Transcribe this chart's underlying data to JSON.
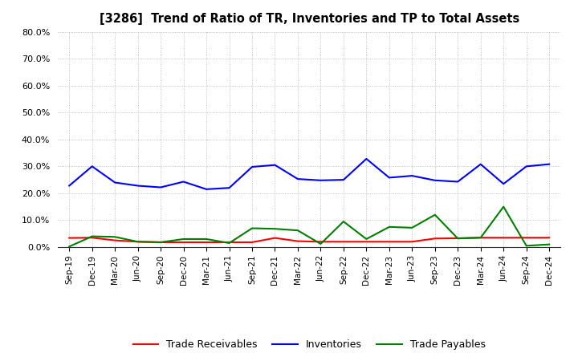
{
  "title": "[3286]  Trend of Ratio of TR, Inventories and TP to Total Assets",
  "x_labels": [
    "Sep-19",
    "Dec-19",
    "Mar-20",
    "Jun-20",
    "Sep-20",
    "Dec-20",
    "Mar-21",
    "Jun-21",
    "Sep-21",
    "Dec-21",
    "Mar-22",
    "Jun-22",
    "Sep-22",
    "Dec-22",
    "Mar-23",
    "Jun-23",
    "Sep-23",
    "Dec-23",
    "Mar-24",
    "Jun-24",
    "Sep-24",
    "Dec-24"
  ],
  "trade_receivables": [
    0.034,
    0.035,
    0.025,
    0.02,
    0.018,
    0.018,
    0.018,
    0.018,
    0.018,
    0.034,
    0.022,
    0.02,
    0.02,
    0.02,
    0.02,
    0.02,
    0.032,
    0.033,
    0.035,
    0.035,
    0.035,
    0.035
  ],
  "inventories": [
    0.228,
    0.3,
    0.24,
    0.228,
    0.222,
    0.243,
    0.215,
    0.22,
    0.298,
    0.305,
    0.253,
    0.248,
    0.25,
    0.328,
    0.258,
    0.265,
    0.248,
    0.243,
    0.308,
    0.235,
    0.3,
    0.308
  ],
  "trade_payables": [
    0.002,
    0.04,
    0.038,
    0.02,
    0.018,
    0.03,
    0.03,
    0.015,
    0.07,
    0.068,
    0.062,
    0.012,
    0.095,
    0.03,
    0.075,
    0.072,
    0.12,
    0.032,
    0.035,
    0.15,
    0.005,
    0.01
  ],
  "tr_color": "#ff0000",
  "inv_color": "#0000ff",
  "tp_color": "#008000",
  "ylim": [
    0.0,
    0.8
  ],
  "yticks": [
    0.0,
    0.1,
    0.2,
    0.3,
    0.4,
    0.5,
    0.6,
    0.7,
    0.8
  ],
  "legend_labels": [
    "Trade Receivables",
    "Inventories",
    "Trade Payables"
  ],
  "background_color": "#ffffff",
  "grid_color": "#b0b0b0"
}
